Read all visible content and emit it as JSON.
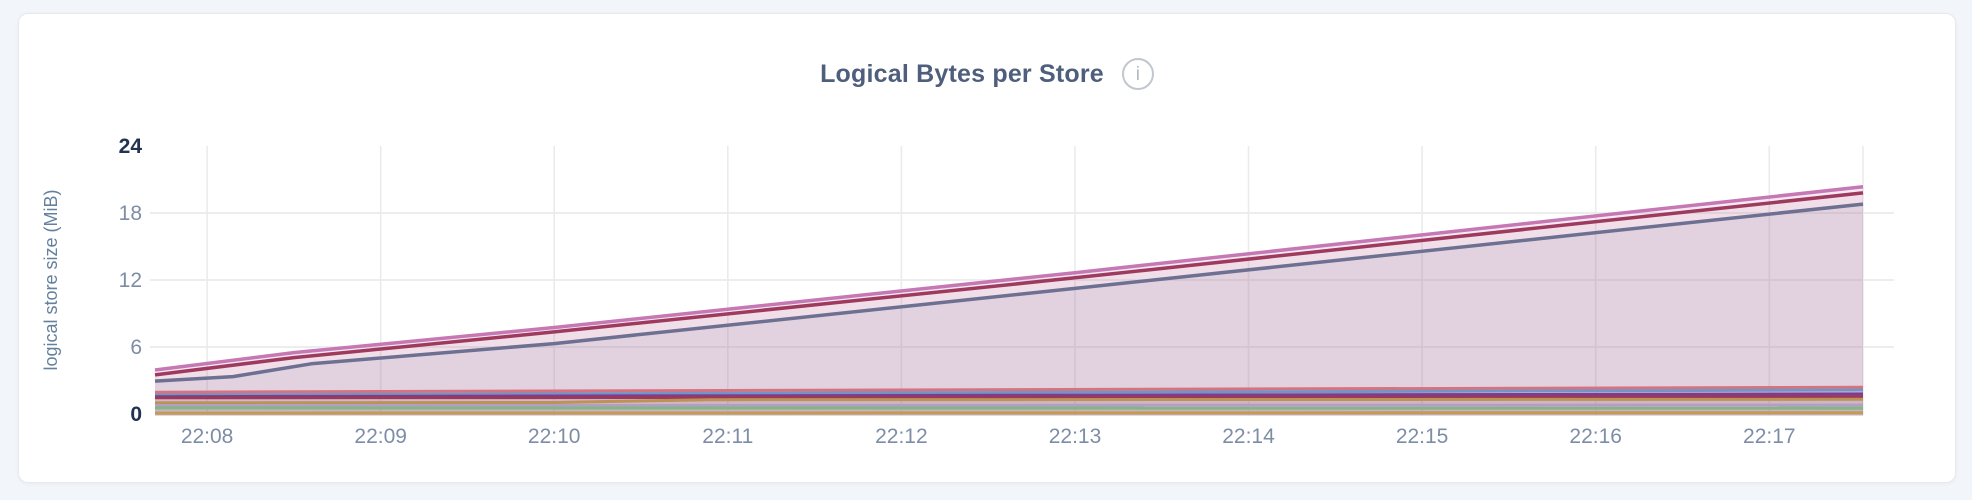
{
  "window": {
    "background": "#f2f5f9",
    "card_background": "#ffffff"
  },
  "chart": {
    "title": "Logical Bytes per Store",
    "info_glyph": "i",
    "y_axis_label": "logical store size (MiB)"
  },
  "chart_data": {
    "type": "area",
    "title": "Logical Bytes per Store",
    "ylabel": "logical store size (MiB)",
    "xlabel": "",
    "x_unit": "minutes after 22:00",
    "x_domain": [
      7.7,
      17.54
    ],
    "ylim": [
      0,
      24
    ],
    "grid": true,
    "legend": false,
    "x_ticks": [
      {
        "t": 8,
        "label": "22:08"
      },
      {
        "t": 9,
        "label": "22:09"
      },
      {
        "t": 10,
        "label": "22:10"
      },
      {
        "t": 11,
        "label": "22:11"
      },
      {
        "t": 12,
        "label": "22:12"
      },
      {
        "t": 13,
        "label": "22:13"
      },
      {
        "t": 14,
        "label": "22:14"
      },
      {
        "t": 15,
        "label": "22:15"
      },
      {
        "t": 16,
        "label": "22:16"
      },
      {
        "t": 17,
        "label": "22:17"
      }
    ],
    "y_ticks": [
      {
        "v": 0,
        "label": "0",
        "bold": true
      },
      {
        "v": 6,
        "label": "6",
        "bold": false
      },
      {
        "v": 12,
        "label": "12",
        "bold": false
      },
      {
        "v": 18,
        "label": "18",
        "bold": false
      },
      {
        "v": 24,
        "label": "24",
        "bold": true
      }
    ],
    "series": [
      {
        "name": "series-1",
        "color": "#c678b4",
        "fill_opacity": 0.16,
        "stroke_width": 3.5,
        "points": [
          [
            7.7,
            3.94
          ],
          [
            8.5,
            5.5
          ],
          [
            10,
            7.75
          ],
          [
            13,
            12.65
          ],
          [
            17.54,
            20.35
          ]
        ]
      },
      {
        "name": "series-2",
        "color": "#9e3a5d",
        "fill_opacity": 0.06,
        "stroke_width": 3.5,
        "points": [
          [
            7.7,
            3.5
          ],
          [
            8.5,
            5.05
          ],
          [
            10,
            7.35
          ],
          [
            13,
            12.2
          ],
          [
            17.54,
            19.8
          ]
        ]
      },
      {
        "name": "series-3",
        "color": "#6e7092",
        "fill_opacity": 0.1,
        "stroke_width": 3.5,
        "points": [
          [
            7.7,
            2.95
          ],
          [
            8.15,
            3.35
          ],
          [
            8.6,
            4.5
          ],
          [
            10,
            6.3
          ],
          [
            13,
            11.25
          ],
          [
            17.54,
            18.8
          ]
        ]
      },
      {
        "name": "series-4",
        "color": "#d6737e",
        "fill_opacity": 0.06,
        "stroke_width": 3,
        "points": [
          [
            7.7,
            1.95
          ],
          [
            17.54,
            2.4
          ]
        ]
      },
      {
        "name": "series-5",
        "color": "#7295c6",
        "fill_opacity": 0.06,
        "stroke_width": 3,
        "points": [
          [
            7.7,
            1.7
          ],
          [
            17.54,
            2.15
          ]
        ]
      },
      {
        "name": "series-6",
        "color": "#7d3c8f",
        "fill_opacity": 0.06,
        "stroke_width": 3,
        "points": [
          [
            7.7,
            1.55
          ],
          [
            17.54,
            1.8
          ]
        ]
      },
      {
        "name": "series-7",
        "color": "#99395e",
        "fill_opacity": 0.06,
        "stroke_width": 3,
        "points": [
          [
            7.7,
            1.45
          ],
          [
            17.54,
            1.55
          ]
        ]
      },
      {
        "name": "series-8",
        "color": "#bd9255",
        "fill_opacity": 0.06,
        "stroke_width": 3,
        "points": [
          [
            7.7,
            1.0
          ],
          [
            10.0,
            1.03
          ],
          [
            10.9,
            1.28
          ],
          [
            17.54,
            1.32
          ]
        ]
      },
      {
        "name": "series-9",
        "color": "#b2a0c4",
        "fill_opacity": 0.06,
        "stroke_width": 3,
        "points": [
          [
            7.7,
            0.75
          ],
          [
            17.54,
            0.8
          ]
        ]
      },
      {
        "name": "series-10",
        "color": "#84b585",
        "fill_opacity": 0.06,
        "stroke_width": 3,
        "points": [
          [
            7.7,
            0.55
          ],
          [
            17.54,
            0.52
          ]
        ]
      },
      {
        "name": "series-11",
        "color": "#c49a57",
        "fill_opacity": 0.06,
        "stroke_width": 3,
        "points": [
          [
            7.7,
            0.08
          ],
          [
            17.54,
            0.12
          ]
        ]
      }
    ]
  }
}
